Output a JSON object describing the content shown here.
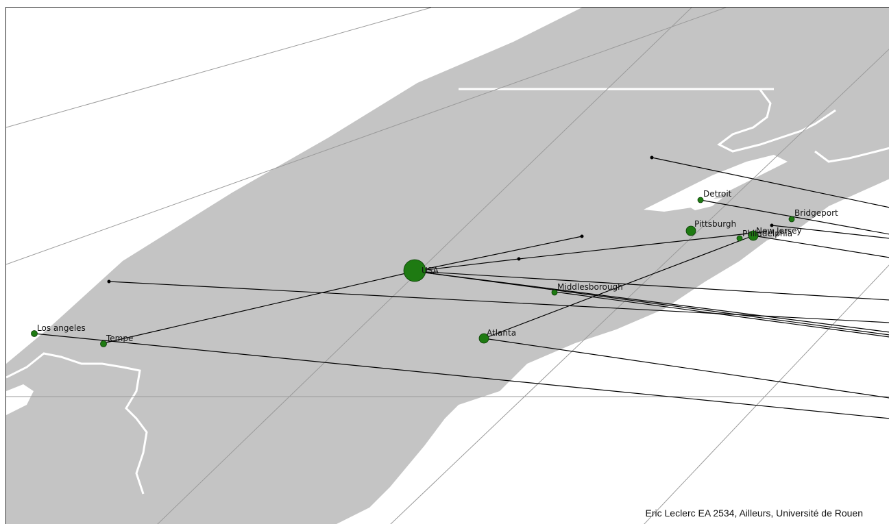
{
  "map": {
    "colors": {
      "land": "#c4c4c4",
      "sea": "#ffffff",
      "border": "#ffffff",
      "graticule": "#9a9a9a",
      "flow": "#000000",
      "node": "#1e7a12"
    },
    "credit": "Eric Leclerc EA 2534, Ailleurs, Université de Rouen",
    "places": [
      {
        "name": "USA",
        "label": "USA"
      },
      {
        "name": "Los angeles",
        "label": "Los angeles"
      },
      {
        "name": "Tempe",
        "label": "Tempe"
      },
      {
        "name": "Atlanta",
        "label": "Atlanta"
      },
      {
        "name": "Middlesborough",
        "label": "Middlesborough"
      },
      {
        "name": "Pittsburgh",
        "label": "Pittsburgh"
      },
      {
        "name": "Detroit",
        "label": "Detroit"
      },
      {
        "name": "Bridgeport",
        "label": "Bridgeport"
      },
      {
        "name": "New Jersey",
        "label": "New Jersey"
      },
      {
        "name": "Philadelphia",
        "label": "Philadelphia"
      }
    ]
  }
}
